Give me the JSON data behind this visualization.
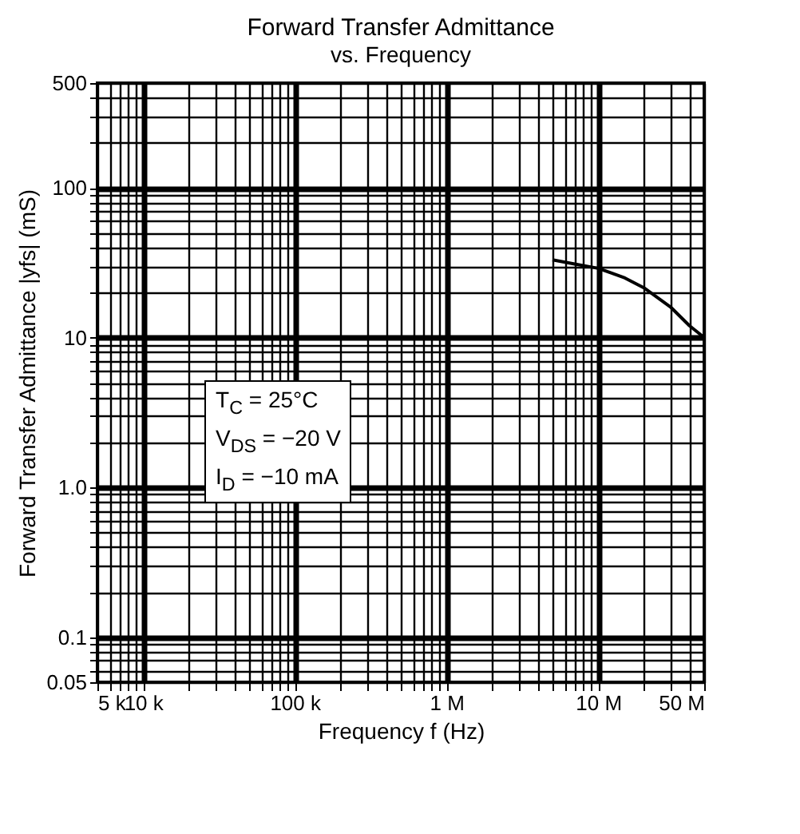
{
  "chart_data": {
    "type": "line",
    "title": "Forward Transfer Admittance",
    "subtitle": "vs. Frequency",
    "xlabel": "Frequency f (Hz)",
    "ylabel": "Forward Transfer Admittance  |yfs|  (mS)",
    "log": "xy",
    "grid": true,
    "marker": "none",
    "line_style": "solid",
    "xlim": [
      5000,
      50000000
    ],
    "ylim": [
      0.05,
      500
    ],
    "xticks": [
      {
        "value": 5000,
        "label": "5 k"
      },
      {
        "value": 6000,
        "label": null
      },
      {
        "value": 7000,
        "label": null
      },
      {
        "value": 8000,
        "label": null
      },
      {
        "value": 9000,
        "label": null
      },
      {
        "value": 10000,
        "label": "10 k"
      },
      {
        "value": 20000,
        "label": null
      },
      {
        "value": 30000,
        "label": null
      },
      {
        "value": 40000,
        "label": null
      },
      {
        "value": 50000,
        "label": null
      },
      {
        "value": 60000,
        "label": null
      },
      {
        "value": 70000,
        "label": null
      },
      {
        "value": 80000,
        "label": null
      },
      {
        "value": 90000,
        "label": null
      },
      {
        "value": 100000,
        "label": "100 k"
      },
      {
        "value": 200000,
        "label": null
      },
      {
        "value": 300000,
        "label": null
      },
      {
        "value": 400000,
        "label": null
      },
      {
        "value": 500000,
        "label": null
      },
      {
        "value": 600000,
        "label": null
      },
      {
        "value": 700000,
        "label": null
      },
      {
        "value": 800000,
        "label": null
      },
      {
        "value": 900000,
        "label": null
      },
      {
        "value": 1000000,
        "label": "1 M"
      },
      {
        "value": 2000000,
        "label": null
      },
      {
        "value": 3000000,
        "label": null
      },
      {
        "value": 4000000,
        "label": null
      },
      {
        "value": 5000000,
        "label": null
      },
      {
        "value": 6000000,
        "label": null
      },
      {
        "value": 7000000,
        "label": null
      },
      {
        "value": 8000000,
        "label": null
      },
      {
        "value": 9000000,
        "label": null
      },
      {
        "value": 10000000,
        "label": "10 M"
      },
      {
        "value": 20000000,
        "label": null
      },
      {
        "value": 30000000,
        "label": null
      },
      {
        "value": 40000000,
        "label": null
      },
      {
        "value": 50000000,
        "label": "50 M"
      }
    ],
    "yticks": [
      {
        "value": 0.05,
        "label": "0.05"
      },
      {
        "value": 0.06,
        "label": null
      },
      {
        "value": 0.07,
        "label": null
      },
      {
        "value": 0.08,
        "label": null
      },
      {
        "value": 0.09,
        "label": null
      },
      {
        "value": 0.1,
        "label": "0.1"
      },
      {
        "value": 0.2,
        "label": null
      },
      {
        "value": 0.3,
        "label": null
      },
      {
        "value": 0.4,
        "label": null
      },
      {
        "value": 0.5,
        "label": null
      },
      {
        "value": 0.6,
        "label": null
      },
      {
        "value": 0.7,
        "label": null
      },
      {
        "value": 0.8,
        "label": null
      },
      {
        "value": 0.9,
        "label": null
      },
      {
        "value": 1,
        "label": "1.0"
      },
      {
        "value": 2,
        "label": null
      },
      {
        "value": 3,
        "label": null
      },
      {
        "value": 4,
        "label": null
      },
      {
        "value": 5,
        "label": null
      },
      {
        "value": 6,
        "label": null
      },
      {
        "value": 7,
        "label": null
      },
      {
        "value": 8,
        "label": null
      },
      {
        "value": 9,
        "label": null
      },
      10,
      {
        "value": 20,
        "label": null
      },
      {
        "value": 30,
        "label": null
      },
      {
        "value": 40,
        "label": null
      },
      {
        "value": 50,
        "label": null
      },
      {
        "value": 60,
        "label": null
      },
      {
        "value": 70,
        "label": null
      },
      {
        "value": 80,
        "label": null
      },
      {
        "value": 90,
        "label": null
      },
      100,
      {
        "value": 200,
        "label": null
      },
      {
        "value": 300,
        "label": null
      },
      {
        "value": 400,
        "label": null
      },
      500
    ],
    "x": [
      5000000,
      7000000,
      10000000,
      15000000,
      20000000,
      30000000,
      40000000,
      50000000
    ],
    "series": [
      {
        "color": "#000000",
        "values": [
          33,
          31,
          29,
          25,
          21.5,
          16,
          12,
          10
        ]
      }
    ],
    "annotations": [
      "T$_{C}$ = 25°C",
      "V$_{DS}$ = −20 V",
      "I$_{D}$ = −10 mA"
    ]
  }
}
